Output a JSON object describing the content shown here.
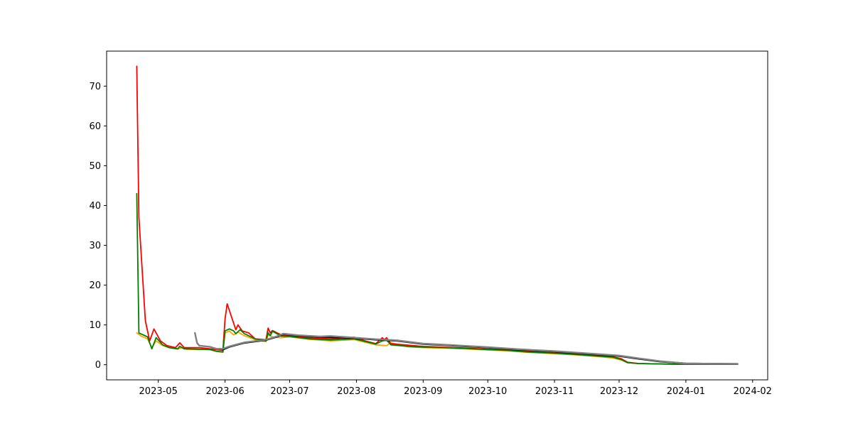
{
  "chart_data": {
    "type": "line",
    "title": "",
    "xlabel": "",
    "ylabel": "",
    "x_axis": {
      "kind": "date",
      "range": [
        "2023-04-07",
        "2024-02-08"
      ],
      "ticks": [
        {
          "date": "2023-05-01",
          "label": "2023-05"
        },
        {
          "date": "2023-06-01",
          "label": "2023-06"
        },
        {
          "date": "2023-07-01",
          "label": "2023-07"
        },
        {
          "date": "2023-08-01",
          "label": "2023-08"
        },
        {
          "date": "2023-09-01",
          "label": "2023-09"
        },
        {
          "date": "2023-10-01",
          "label": "2023-10"
        },
        {
          "date": "2023-11-01",
          "label": "2023-11"
        },
        {
          "date": "2023-12-01",
          "label": "2023-12"
        },
        {
          "date": "2024-01-01",
          "label": "2024-01"
        },
        {
          "date": "2024-02-01",
          "label": "2024-02"
        }
      ]
    },
    "y_axis": {
      "range": [
        -3.8,
        78.8
      ],
      "ticks": [
        0,
        10,
        20,
        30,
        40,
        50,
        60,
        70
      ]
    },
    "grid": false,
    "legend": "none",
    "series": [
      {
        "color": "#ffa500",
        "points": [
          [
            "2023-04-21",
            8.0
          ],
          [
            "2023-04-23",
            7.2
          ],
          [
            "2023-04-26",
            6.5
          ],
          [
            "2023-04-28",
            4.3
          ],
          [
            "2023-04-30",
            6.0
          ],
          [
            "2023-05-03",
            4.8
          ],
          [
            "2023-05-06",
            4.3
          ],
          [
            "2023-05-10",
            3.9
          ],
          [
            "2023-05-12",
            4.3
          ],
          [
            "2023-05-14",
            3.9
          ],
          [
            "2023-05-20",
            3.8
          ],
          [
            "2023-05-25",
            3.8
          ],
          [
            "2023-05-28",
            3.3
          ],
          [
            "2023-05-31",
            3.2
          ],
          [
            "2023-06-01",
            8.0
          ],
          [
            "2023-06-03",
            8.5
          ],
          [
            "2023-06-05",
            7.5
          ],
          [
            "2023-06-07",
            8.2
          ],
          [
            "2023-06-10",
            7.3
          ],
          [
            "2023-06-15",
            6.3
          ],
          [
            "2023-06-20",
            5.8
          ],
          [
            "2023-06-21",
            7.5
          ],
          [
            "2023-06-23",
            7.0
          ],
          [
            "2023-06-27",
            6.8
          ],
          [
            "2023-07-01",
            7.0
          ],
          [
            "2023-07-10",
            6.4
          ],
          [
            "2023-07-20",
            6.0
          ],
          [
            "2023-07-31",
            6.3
          ],
          [
            "2023-08-10",
            5.0
          ],
          [
            "2023-08-15",
            4.8
          ],
          [
            "2023-08-17",
            5.5
          ],
          [
            "2023-08-25",
            4.5
          ],
          [
            "2023-09-01",
            4.3
          ],
          [
            "2023-09-10",
            4.2
          ],
          [
            "2023-09-20",
            4.0
          ],
          [
            "2023-10-01",
            3.7
          ],
          [
            "2023-10-10",
            3.5
          ],
          [
            "2023-10-20",
            3.1
          ],
          [
            "2023-10-31",
            2.8
          ],
          [
            "2023-11-10",
            2.5
          ],
          [
            "2023-11-20",
            2.1
          ],
          [
            "2023-11-28",
            1.7
          ],
          [
            "2023-12-02",
            1.2
          ],
          [
            "2023-12-05",
            0.5
          ],
          [
            "2023-12-10",
            0.3
          ],
          [
            "2023-12-20",
            0.2
          ],
          [
            "2024-01-01",
            0.1
          ],
          [
            "2024-01-25",
            0.1
          ]
        ]
      },
      {
        "color": "#ff0000",
        "points": [
          [
            "2023-04-21",
            75.0
          ],
          [
            "2023-04-22",
            37.0
          ],
          [
            "2023-04-25",
            11.0
          ],
          [
            "2023-04-27",
            6.0
          ],
          [
            "2023-04-29",
            9.0
          ],
          [
            "2023-05-02",
            6.0
          ],
          [
            "2023-05-05",
            4.8
          ],
          [
            "2023-05-09",
            4.3
          ],
          [
            "2023-05-11",
            5.5
          ],
          [
            "2023-05-13",
            4.3
          ],
          [
            "2023-05-20",
            4.3
          ],
          [
            "2023-05-25",
            4.0
          ],
          [
            "2023-05-28",
            3.8
          ],
          [
            "2023-05-31",
            3.6
          ],
          [
            "2023-06-01",
            11.5
          ],
          [
            "2023-06-02",
            15.3
          ],
          [
            "2023-06-04",
            12.0
          ],
          [
            "2023-06-06",
            8.8
          ],
          [
            "2023-06-07",
            10.0
          ],
          [
            "2023-06-09",
            8.5
          ],
          [
            "2023-06-12",
            8.0
          ],
          [
            "2023-06-15",
            6.5
          ],
          [
            "2023-06-20",
            6.3
          ],
          [
            "2023-06-21",
            9.2
          ],
          [
            "2023-06-22",
            8.0
          ],
          [
            "2023-06-23",
            8.6
          ],
          [
            "2023-06-27",
            7.5
          ],
          [
            "2023-07-01",
            7.3
          ],
          [
            "2023-07-10",
            6.8
          ],
          [
            "2023-07-20",
            6.5
          ],
          [
            "2023-07-31",
            6.9
          ],
          [
            "2023-08-05",
            6.0
          ],
          [
            "2023-08-10",
            5.3
          ],
          [
            "2023-08-13",
            6.8
          ],
          [
            "2023-08-14",
            6.3
          ],
          [
            "2023-08-15",
            6.8
          ],
          [
            "2023-08-17",
            5.3
          ],
          [
            "2023-08-25",
            4.9
          ],
          [
            "2023-09-01",
            4.6
          ],
          [
            "2023-09-10",
            4.4
          ],
          [
            "2023-09-20",
            4.2
          ],
          [
            "2023-10-01",
            3.9
          ],
          [
            "2023-10-10",
            3.7
          ],
          [
            "2023-10-20",
            3.3
          ],
          [
            "2023-10-31",
            3.0
          ],
          [
            "2023-11-10",
            2.7
          ],
          [
            "2023-11-20",
            2.3
          ],
          [
            "2023-11-28",
            2.0
          ],
          [
            "2023-12-02",
            1.5
          ],
          [
            "2023-12-05",
            0.6
          ],
          [
            "2023-12-10",
            0.3
          ],
          [
            "2023-12-20",
            0.2
          ],
          [
            "2024-01-01",
            0.1
          ],
          [
            "2024-01-25",
            0.1
          ]
        ]
      },
      {
        "color": "#008000",
        "points": [
          [
            "2023-04-21",
            43.0
          ],
          [
            "2023-04-22",
            8.0
          ],
          [
            "2023-04-26",
            7.0
          ],
          [
            "2023-04-28",
            4.0
          ],
          [
            "2023-04-30",
            6.8
          ],
          [
            "2023-05-03",
            5.0
          ],
          [
            "2023-05-06",
            4.3
          ],
          [
            "2023-05-10",
            4.0
          ],
          [
            "2023-05-11",
            4.6
          ],
          [
            "2023-05-13",
            4.0
          ],
          [
            "2023-05-20",
            3.9
          ],
          [
            "2023-05-25",
            3.8
          ],
          [
            "2023-05-28",
            3.4
          ],
          [
            "2023-05-31",
            3.2
          ],
          [
            "2023-06-01",
            8.5
          ],
          [
            "2023-06-03",
            9.0
          ],
          [
            "2023-06-05",
            8.5
          ],
          [
            "2023-06-06",
            7.8
          ],
          [
            "2023-06-08",
            8.8
          ],
          [
            "2023-06-10",
            7.8
          ],
          [
            "2023-06-15",
            6.5
          ],
          [
            "2023-06-20",
            6.0
          ],
          [
            "2023-06-21",
            8.0
          ],
          [
            "2023-06-22",
            7.3
          ],
          [
            "2023-06-23",
            8.4
          ],
          [
            "2023-06-27",
            7.2
          ],
          [
            "2023-07-01",
            7.1
          ],
          [
            "2023-07-10",
            6.5
          ],
          [
            "2023-07-20",
            6.2
          ],
          [
            "2023-07-31",
            6.5
          ],
          [
            "2023-08-10",
            5.2
          ],
          [
            "2023-08-13",
            6.0
          ],
          [
            "2023-08-15",
            6.2
          ],
          [
            "2023-08-17",
            5.0
          ],
          [
            "2023-08-25",
            4.6
          ],
          [
            "2023-09-01",
            4.4
          ],
          [
            "2023-09-10",
            4.3
          ],
          [
            "2023-09-20",
            4.1
          ],
          [
            "2023-10-01",
            3.8
          ],
          [
            "2023-10-10",
            3.6
          ],
          [
            "2023-10-20",
            3.2
          ],
          [
            "2023-10-31",
            2.9
          ],
          [
            "2023-11-10",
            2.6
          ],
          [
            "2023-11-20",
            2.2
          ],
          [
            "2023-11-28",
            1.9
          ],
          [
            "2023-12-02",
            1.3
          ],
          [
            "2023-12-05",
            0.5
          ],
          [
            "2023-12-10",
            0.3
          ],
          [
            "2023-12-20",
            0.2
          ],
          [
            "2024-01-01",
            0.1
          ],
          [
            "2024-01-25",
            0.1
          ]
        ]
      },
      {
        "color": "#000000",
        "points": [
          [
            "2023-05-31",
            3.8
          ],
          [
            "2023-06-03",
            4.5
          ],
          [
            "2023-06-10",
            5.5
          ],
          [
            "2023-06-20",
            6.2
          ],
          [
            "2023-06-25",
            7.0
          ],
          [
            "2023-06-28",
            7.7
          ],
          [
            "2023-07-05",
            7.3
          ],
          [
            "2023-07-15",
            7.0
          ],
          [
            "2023-07-31",
            6.7
          ],
          [
            "2023-08-10",
            6.3
          ],
          [
            "2023-08-20",
            6.0
          ],
          [
            "2023-09-01",
            5.2
          ],
          [
            "2023-09-15",
            4.8
          ],
          [
            "2023-10-01",
            4.3
          ],
          [
            "2023-10-15",
            3.8
          ],
          [
            "2023-11-01",
            3.3
          ],
          [
            "2023-11-15",
            2.8
          ],
          [
            "2023-12-01",
            2.2
          ],
          [
            "2023-12-10",
            1.5
          ],
          [
            "2023-12-20",
            0.8
          ],
          [
            "2024-01-01",
            0.3
          ],
          [
            "2024-01-25",
            0.2
          ]
        ]
      },
      {
        "color": "#808080",
        "points": [
          [
            "2023-05-18",
            8.0
          ],
          [
            "2023-05-19",
            5.5
          ],
          [
            "2023-05-20",
            4.8
          ],
          [
            "2023-05-25",
            4.5
          ],
          [
            "2023-05-28",
            4.0
          ],
          [
            "2023-05-31",
            4.0
          ],
          [
            "2023-06-03",
            4.6
          ],
          [
            "2023-06-10",
            5.6
          ],
          [
            "2023-06-20",
            6.3
          ],
          [
            "2023-06-25",
            7.1
          ],
          [
            "2023-06-28",
            7.8
          ],
          [
            "2023-07-05",
            7.4
          ],
          [
            "2023-07-15",
            7.1
          ],
          [
            "2023-07-20",
            7.2
          ],
          [
            "2023-07-31",
            6.8
          ],
          [
            "2023-08-10",
            6.4
          ],
          [
            "2023-08-20",
            6.1
          ],
          [
            "2023-09-01",
            5.3
          ],
          [
            "2023-09-15",
            4.9
          ],
          [
            "2023-10-01",
            4.4
          ],
          [
            "2023-10-15",
            3.9
          ],
          [
            "2023-11-01",
            3.4
          ],
          [
            "2023-11-15",
            2.9
          ],
          [
            "2023-12-01",
            2.3
          ],
          [
            "2023-12-10",
            1.6
          ],
          [
            "2023-12-20",
            0.9
          ],
          [
            "2024-01-01",
            0.3
          ],
          [
            "2024-01-25",
            0.2
          ]
        ]
      }
    ]
  }
}
